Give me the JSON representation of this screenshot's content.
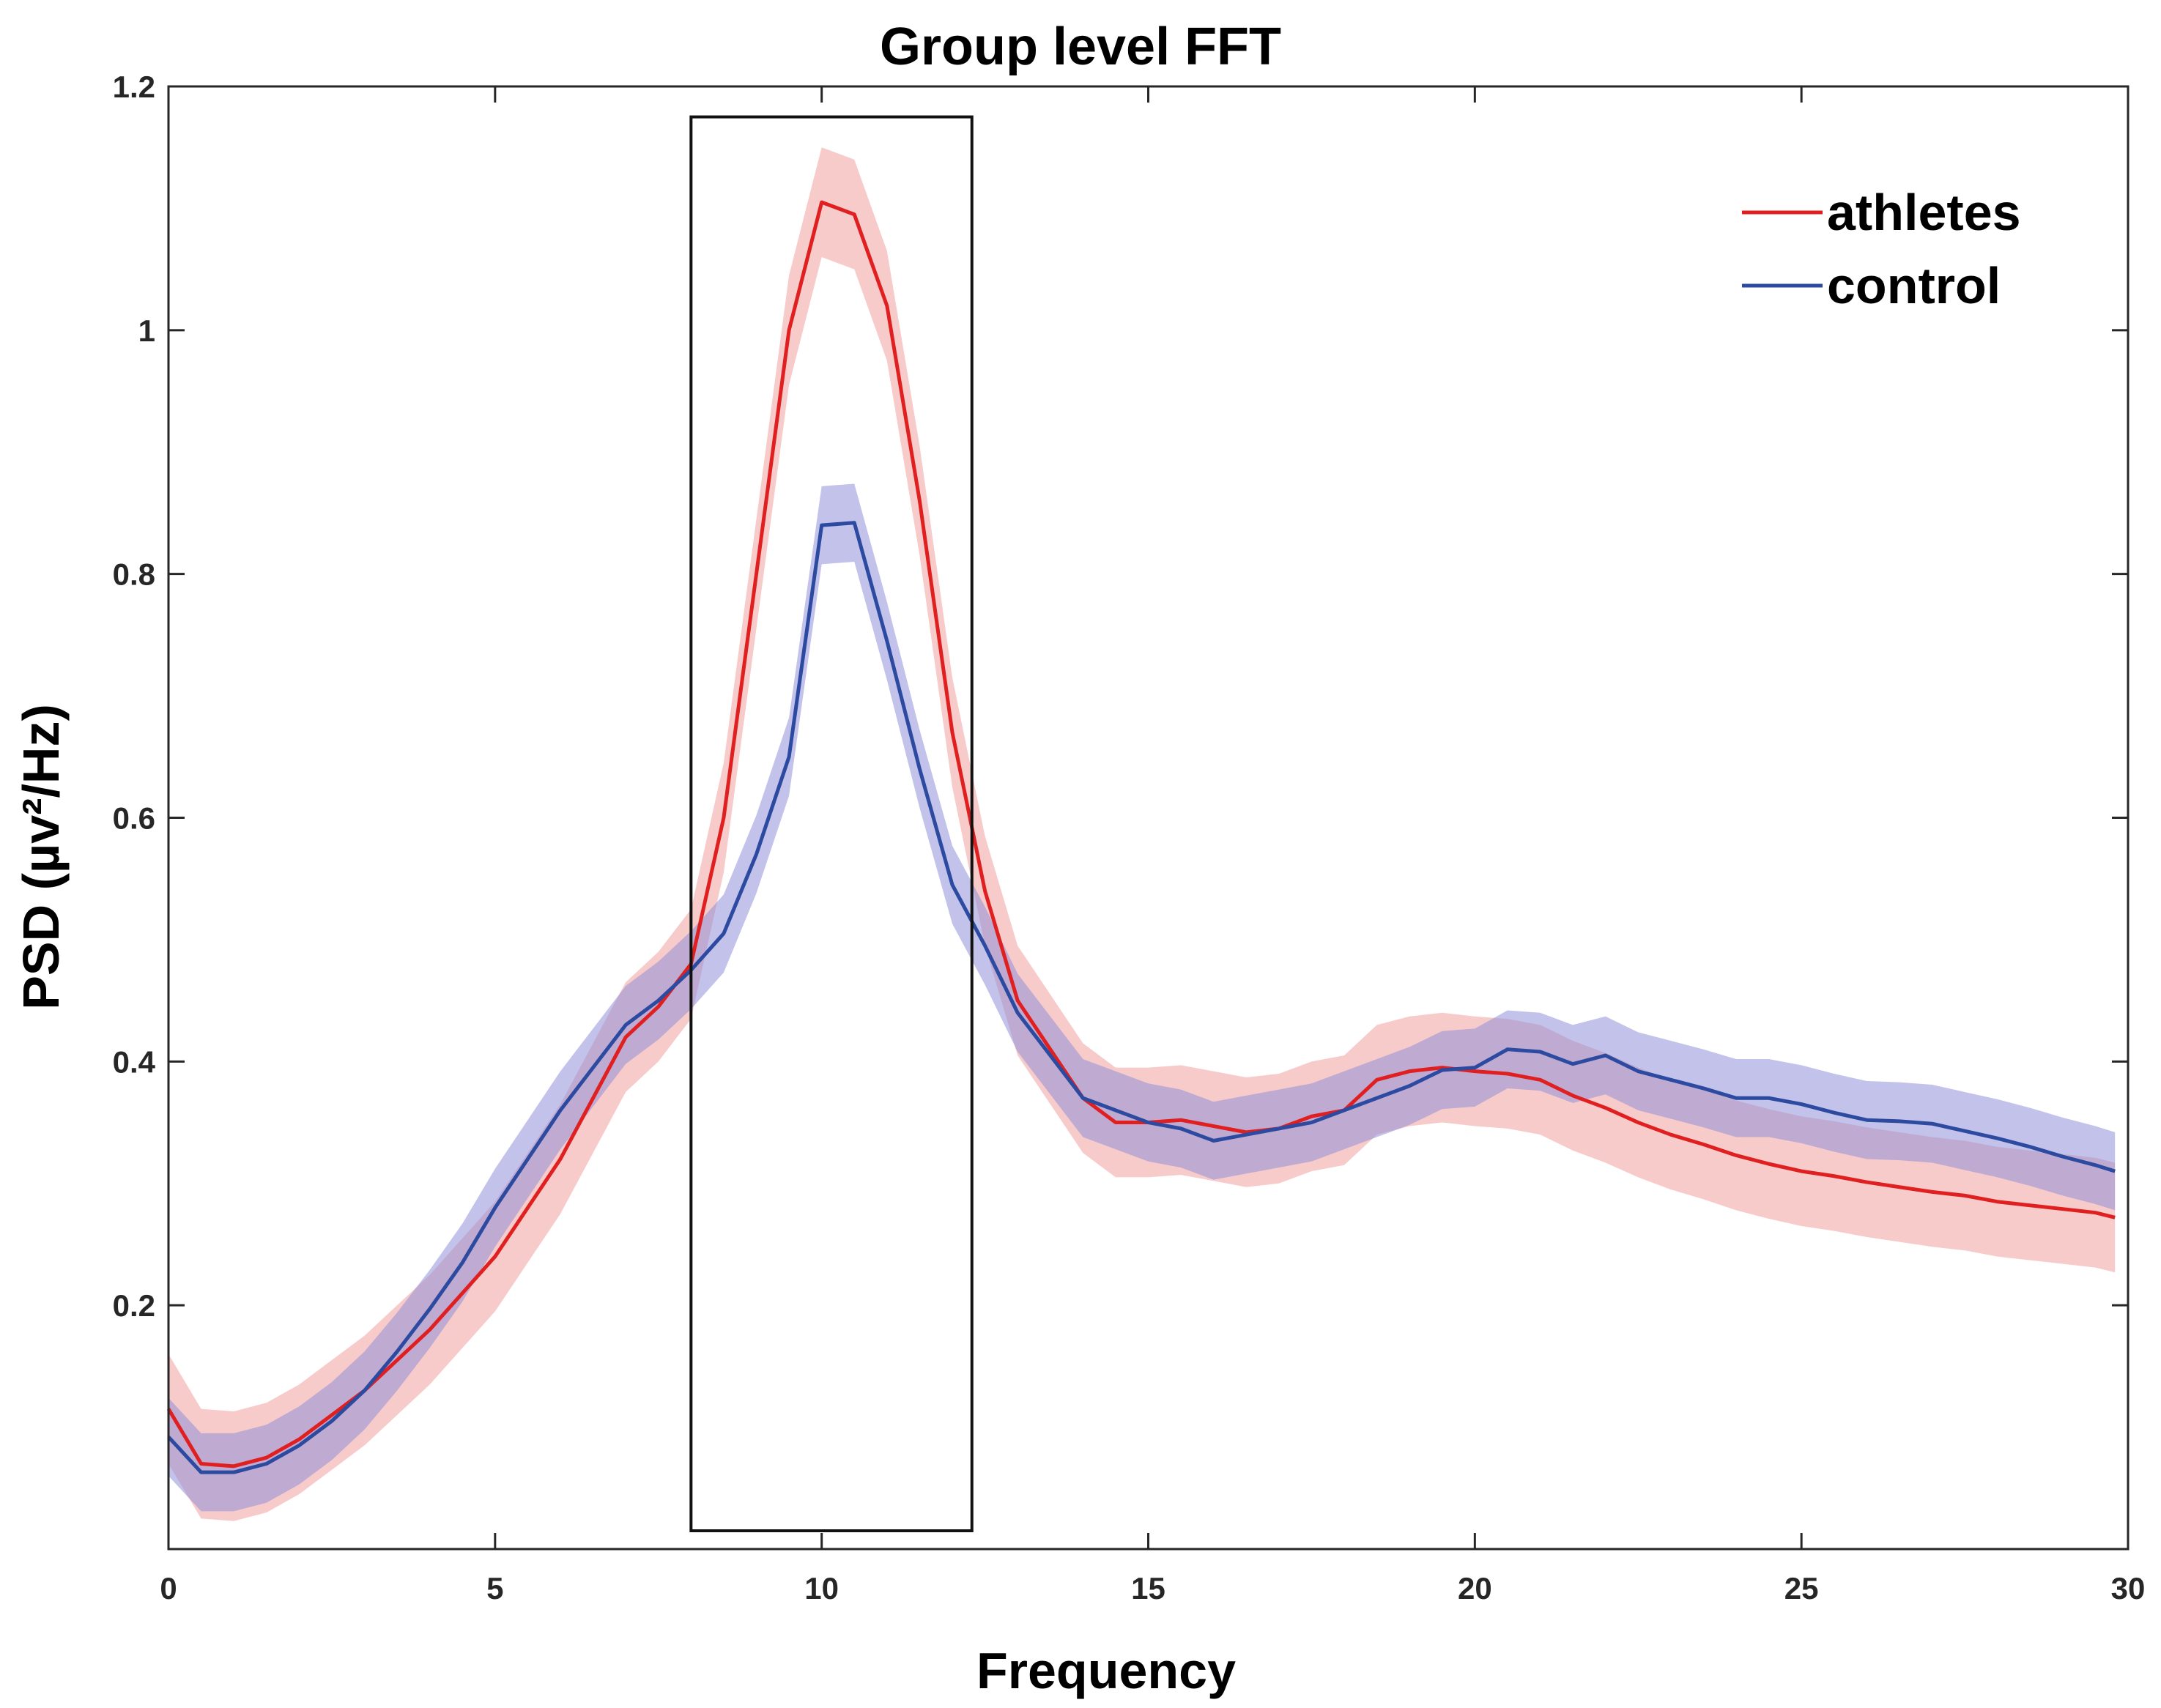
{
  "chart_data": {
    "type": "line",
    "title": "Group level FFT",
    "xlabel": "Frequency",
    "ylabel": "PSD (µv²/Hz)",
    "xlim": [
      0,
      30
    ],
    "ylim": [
      0,
      1.2
    ],
    "xticks": [
      0,
      5,
      10,
      15,
      20,
      25,
      30
    ],
    "yticks": [
      0.2,
      0.4,
      0.6,
      0.8,
      1,
      1.2
    ],
    "xtick_labels": [
      "0",
      "5",
      "10",
      "15",
      "20",
      "25",
      "30"
    ],
    "ytick_labels": [
      "0.2",
      "0.4",
      "0.6",
      "0.8",
      "1",
      "1.2"
    ],
    "grid": false,
    "legend_position": "top-right",
    "highlight_box": {
      "x_start": 8.0,
      "x_end": 12.3,
      "y_start": 0.015,
      "y_end": 1.175
    },
    "x": [
      0.0,
      0.5,
      1.0,
      1.5,
      2.0,
      2.5,
      3.0,
      3.5,
      4.0,
      4.5,
      5.0,
      5.5,
      6.0,
      6.5,
      7.0,
      7.5,
      8.0,
      8.5,
      9.0,
      9.5,
      10.0,
      10.5,
      11.0,
      11.5,
      12.0,
      12.5,
      13.0,
      13.5,
      14.0,
      14.5,
      15.0,
      15.5,
      16.0,
      16.5,
      17.0,
      17.5,
      18.0,
      18.5,
      19.0,
      19.5,
      20.0,
      20.5,
      21.0,
      21.5,
      22.0,
      22.5,
      23.0,
      23.5,
      24.0,
      24.5,
      25.0,
      25.5,
      26.0,
      26.5,
      27.0,
      27.5,
      28.0,
      28.5,
      29.0,
      29.5,
      29.8
    ],
    "series": [
      {
        "name": "athletes",
        "color": "#e02020",
        "band_color": "#f2a0a0",
        "values": [
          0.115,
          0.07,
          0.068,
          0.075,
          0.09,
          0.11,
          0.13,
          0.155,
          0.18,
          0.21,
          0.24,
          0.28,
          0.32,
          0.37,
          0.42,
          0.445,
          0.48,
          0.6,
          0.8,
          1.0,
          1.105,
          1.095,
          1.02,
          0.86,
          0.67,
          0.54,
          0.45,
          0.41,
          0.37,
          0.35,
          0.35,
          0.352,
          0.347,
          0.342,
          0.345,
          0.355,
          0.36,
          0.385,
          0.392,
          0.395,
          0.392,
          0.39,
          0.385,
          0.372,
          0.362,
          0.35,
          0.34,
          0.332,
          0.323,
          0.316,
          0.31,
          0.306,
          0.301,
          0.297,
          0.293,
          0.29,
          0.285,
          0.282,
          0.279,
          0.276,
          0.272
        ],
        "band": [
          0.045,
          0.045,
          0.045,
          0.045,
          0.045,
          0.045,
          0.045,
          0.045,
          0.045,
          0.045,
          0.045,
          0.045,
          0.045,
          0.045,
          0.045,
          0.045,
          0.045,
          0.045,
          0.045,
          0.045,
          0.045,
          0.045,
          0.045,
          0.045,
          0.045,
          0.045,
          0.045,
          0.045,
          0.045,
          0.045,
          0.045,
          0.045,
          0.045,
          0.045,
          0.045,
          0.045,
          0.045,
          0.045,
          0.045,
          0.045,
          0.045,
          0.045,
          0.045,
          0.045,
          0.045,
          0.045,
          0.045,
          0.045,
          0.045,
          0.045,
          0.045,
          0.045,
          0.045,
          0.045,
          0.045,
          0.045,
          0.045,
          0.045,
          0.045,
          0.045,
          0.045
        ]
      },
      {
        "name": "control",
        "color": "#2b4aa0",
        "band_color": "#8f8fd8",
        "values": [
          0.092,
          0.063,
          0.063,
          0.07,
          0.085,
          0.105,
          0.13,
          0.162,
          0.197,
          0.235,
          0.28,
          0.32,
          0.36,
          0.395,
          0.43,
          0.45,
          0.475,
          0.505,
          0.57,
          0.65,
          0.84,
          0.842,
          0.745,
          0.64,
          0.545,
          0.495,
          0.44,
          0.405,
          0.37,
          0.36,
          0.35,
          0.345,
          0.335,
          0.34,
          0.345,
          0.35,
          0.36,
          0.37,
          0.38,
          0.393,
          0.395,
          0.41,
          0.408,
          0.398,
          0.405,
          0.392,
          0.385,
          0.378,
          0.37,
          0.37,
          0.365,
          0.358,
          0.352,
          0.351,
          0.349,
          0.343,
          0.337,
          0.33,
          0.322,
          0.315,
          0.31
        ],
        "band": [
          0.032,
          0.032,
          0.032,
          0.032,
          0.032,
          0.032,
          0.032,
          0.032,
          0.032,
          0.032,
          0.032,
          0.032,
          0.032,
          0.032,
          0.032,
          0.032,
          0.032,
          0.032,
          0.032,
          0.032,
          0.032,
          0.032,
          0.032,
          0.032,
          0.032,
          0.032,
          0.032,
          0.032,
          0.032,
          0.032,
          0.032,
          0.032,
          0.032,
          0.032,
          0.032,
          0.032,
          0.032,
          0.032,
          0.032,
          0.032,
          0.032,
          0.032,
          0.032,
          0.032,
          0.032,
          0.032,
          0.032,
          0.032,
          0.032,
          0.032,
          0.032,
          0.032,
          0.032,
          0.032,
          0.032,
          0.032,
          0.032,
          0.032,
          0.032,
          0.032,
          0.032
        ]
      }
    ]
  }
}
